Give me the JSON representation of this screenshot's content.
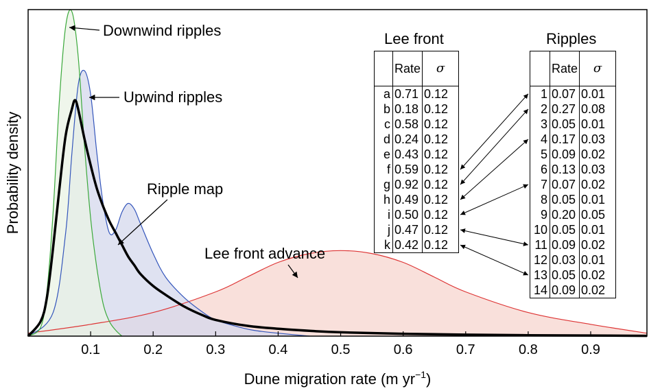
{
  "chart_data": {
    "type": "area",
    "xlabel": "Dune migration rate (m yr",
    "xlabel_sup": "−1",
    "xlabel_tail": ")",
    "ylabel": "Probability density",
    "xlim": [
      0,
      0.99
    ],
    "xticks": [
      "0.1",
      "0.2",
      "0.3",
      "0.4",
      "0.5",
      "0.6",
      "0.7",
      "0.8",
      "0.9"
    ],
    "series": [
      {
        "name": "Downwind ripples",
        "color": "#3aa83a",
        "fill": "#e9f3e4",
        "x": [
          0.0,
          0.02,
          0.03,
          0.04,
          0.05,
          0.06,
          0.07,
          0.08,
          0.09,
          0.1,
          0.11,
          0.12,
          0.13,
          0.14,
          0.15
        ],
        "y": [
          0.0,
          0.03,
          0.15,
          0.42,
          0.8,
          1.05,
          1.1,
          0.95,
          0.65,
          0.4,
          0.23,
          0.11,
          0.05,
          0.02,
          0.0
        ]
      },
      {
        "name": "Upwind ripples",
        "color": "#3355bb",
        "fill": "#d4d8ec",
        "x": [
          0.0,
          0.04,
          0.06,
          0.07,
          0.08,
          0.09,
          0.1,
          0.11,
          0.12,
          0.13,
          0.14,
          0.15,
          0.16,
          0.17,
          0.18,
          0.2,
          0.22,
          0.25,
          0.28,
          0.3,
          0.33,
          0.36,
          0.4,
          0.45
        ],
        "y": [
          0.0,
          0.08,
          0.35,
          0.62,
          0.85,
          0.9,
          0.82,
          0.62,
          0.45,
          0.35,
          0.36,
          0.42,
          0.45,
          0.43,
          0.38,
          0.28,
          0.2,
          0.13,
          0.08,
          0.055,
          0.035,
          0.02,
          0.01,
          0.0
        ]
      },
      {
        "name": "Lee front advance",
        "color": "#dd3333",
        "fill": "#f7d6cf",
        "x": [
          0.0,
          0.1,
          0.2,
          0.3,
          0.35,
          0.4,
          0.45,
          0.5,
          0.55,
          0.6,
          0.65,
          0.7,
          0.8,
          0.9,
          0.99
        ],
        "y": [
          0.01,
          0.04,
          0.08,
          0.15,
          0.2,
          0.25,
          0.28,
          0.29,
          0.28,
          0.25,
          0.2,
          0.15,
          0.08,
          0.04,
          0.01
        ]
      },
      {
        "name": "Ripple map",
        "color": "#000000",
        "fill": "none",
        "x": [
          0.0,
          0.02,
          0.03,
          0.04,
          0.05,
          0.06,
          0.07,
          0.075,
          0.08,
          0.09,
          0.1,
          0.11,
          0.12,
          0.13,
          0.14,
          0.15,
          0.16,
          0.17,
          0.18,
          0.2,
          0.22,
          0.25,
          0.28,
          0.3,
          0.35,
          0.4,
          0.45,
          0.5,
          0.6,
          0.7,
          0.8,
          0.9,
          0.99
        ],
        "y": [
          0.0,
          0.05,
          0.13,
          0.3,
          0.5,
          0.68,
          0.77,
          0.8,
          0.77,
          0.67,
          0.58,
          0.5,
          0.44,
          0.39,
          0.35,
          0.31,
          0.27,
          0.24,
          0.21,
          0.17,
          0.14,
          0.1,
          0.07,
          0.055,
          0.035,
          0.025,
          0.018,
          0.013,
          0.008,
          0.005,
          0.003,
          0.002,
          0.001
        ]
      }
    ],
    "annotations": [
      {
        "text": "Downwind ripples",
        "series": 0
      },
      {
        "text": "Upwind ripples",
        "series": 1
      },
      {
        "text": "Ripple map",
        "series": 3
      },
      {
        "text": "Lee front advance",
        "series": 2
      }
    ],
    "tables": {
      "lee_front": {
        "title": "Lee front",
        "headers": [
          "",
          "Rate",
          "σ"
        ],
        "rows": [
          [
            "a",
            "0.71",
            "0.12"
          ],
          [
            "b",
            "0.18",
            "0.12"
          ],
          [
            "c",
            "0.58",
            "0.12"
          ],
          [
            "d",
            "0.24",
            "0.12"
          ],
          [
            "e",
            "0.43",
            "0.12"
          ],
          [
            "f",
            "0.59",
            "0.12"
          ],
          [
            "g",
            "0.92",
            "0.12"
          ],
          [
            "h",
            "0.49",
            "0.12"
          ],
          [
            "i",
            "0.50",
            "0.12"
          ],
          [
            "j",
            "0.47",
            "0.12"
          ],
          [
            "k",
            "0.42",
            "0.12"
          ]
        ]
      },
      "ripples": {
        "title": "Ripples",
        "headers": [
          "",
          "Rate",
          "σ"
        ],
        "rows": [
          [
            "1",
            "0.07",
            "0.01"
          ],
          [
            "2",
            "0.27",
            "0.08"
          ],
          [
            "3",
            "0.05",
            "0.01"
          ],
          [
            "4",
            "0.17",
            "0.03"
          ],
          [
            "5",
            "0.09",
            "0.02"
          ],
          [
            "6",
            "0.13",
            "0.03"
          ],
          [
            "7",
            "0.07",
            "0.02"
          ],
          [
            "8",
            "0.05",
            "0.01"
          ],
          [
            "9",
            "0.20",
            "0.05"
          ],
          [
            "10",
            "0.05",
            "0.01"
          ],
          [
            "11",
            "0.09",
            "0.02"
          ],
          [
            "12",
            "0.03",
            "0.01"
          ],
          [
            "13",
            "0.05",
            "0.02"
          ],
          [
            "14",
            "0.09",
            "0.02"
          ]
        ]
      },
      "links": [
        {
          "from": "f",
          "to": "1"
        },
        {
          "from": "g",
          "to": "2"
        },
        {
          "from": "h",
          "to": "4"
        },
        {
          "from": "i",
          "to": "7"
        },
        {
          "from": "j",
          "to": "11"
        },
        {
          "from": "k",
          "to": "13"
        }
      ]
    }
  }
}
